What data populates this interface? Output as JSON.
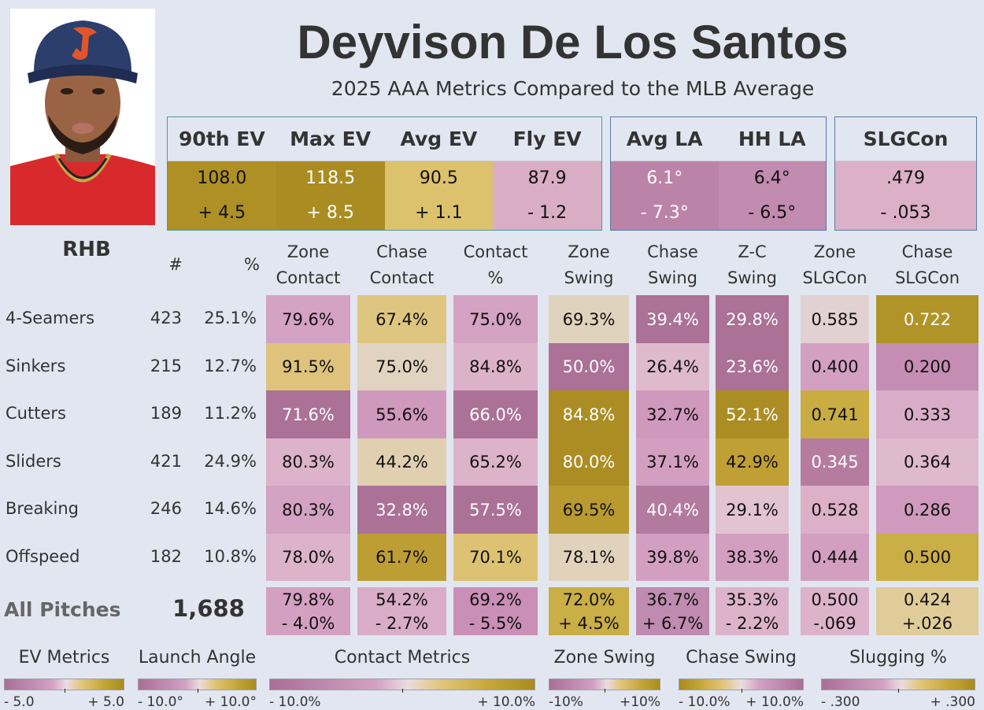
{
  "header": {
    "player_name": "Deyvison De Los Santos",
    "subtitle": "2025 AAA Metrics Compared to the MLB Average"
  },
  "summary": {
    "ev": [
      {
        "label": "90th EV",
        "value": "108.0",
        "diff": "+ 4.5",
        "bg": "#ae9024",
        "fg": "#111111"
      },
      {
        "label": "Max EV",
        "value": "118.5",
        "diff": "+ 8.5",
        "bg": "#ab8c22",
        "fg": "#ffffff"
      },
      {
        "label": "Avg EV",
        "value": "90.5",
        "diff": "+ 1.1",
        "bg": "#dcc26c",
        "fg": "#111111"
      },
      {
        "label": "Fly EV",
        "value": "87.9",
        "diff": "- 1.2",
        "bg": "#d9adc6",
        "fg": "#111111"
      }
    ],
    "la": [
      {
        "label": "Avg LA",
        "value": "6.1°",
        "diff": "- 7.3°",
        "bg": "#bc83a8",
        "fg": "#ffffff"
      },
      {
        "label": "HH LA",
        "value": "6.4°",
        "diff": "- 6.5°",
        "bg": "#c28bb0",
        "fg": "#111111"
      }
    ],
    "slg": [
      {
        "label": "SLGCon",
        "value": ".479",
        "diff": "- .053",
        "bg": "#dbb0c8",
        "fg": "#111111"
      }
    ]
  },
  "table": {
    "handedness": "RHB",
    "count_header": "#",
    "pct_header": "%",
    "columns": [
      {
        "line1": "Zone",
        "line2": "Contact"
      },
      {
        "line1": "Chase",
        "line2": "Contact"
      },
      {
        "line1": "Contact",
        "line2": "%"
      },
      {
        "line1": "Zone",
        "line2": "Swing"
      },
      {
        "line1": "Chase",
        "line2": "Swing"
      },
      {
        "line1": "Z-C",
        "line2": "Swing"
      },
      {
        "line1": "Zone",
        "line2": "SLGCon"
      },
      {
        "line1": "Chase",
        "line2": "SLGCon"
      }
    ],
    "rows": [
      {
        "pitch": "4-Seamers",
        "count": "423",
        "pct": "25.1%",
        "cells": [
          {
            "v": "79.6%",
            "bg": "#d4a2c2",
            "fg": "#111"
          },
          {
            "v": "67.4%",
            "bg": "#dfc680",
            "fg": "#111"
          },
          {
            "v": "75.0%",
            "bg": "#d4a2c2",
            "fg": "#111"
          },
          {
            "v": "69.3%",
            "bg": "#e0d3bd",
            "fg": "#111"
          },
          {
            "v": "39.4%",
            "bg": "#ab7197",
            "fg": "#fff"
          },
          {
            "v": "29.8%",
            "bg": "#ab7197",
            "fg": "#fff"
          },
          {
            "v": "0.585",
            "bg": "#e2d1d2",
            "fg": "#111"
          },
          {
            "v": "0.722",
            "bg": "#b09428",
            "fg": "#fff"
          }
        ]
      },
      {
        "pitch": "Sinkers",
        "count": "215",
        "pct": "12.7%",
        "cells": [
          {
            "v": "91.5%",
            "bg": "#dfc37c",
            "fg": "#111"
          },
          {
            "v": "75.0%",
            "bg": "#e0d3c0",
            "fg": "#111"
          },
          {
            "v": "84.8%",
            "bg": "#dcb2ca",
            "fg": "#111"
          },
          {
            "v": "50.0%",
            "bg": "#ab7197",
            "fg": "#fff"
          },
          {
            "v": "26.4%",
            "bg": "#dfbacc",
            "fg": "#111"
          },
          {
            "v": "23.6%",
            "bg": "#ab7197",
            "fg": "#fff"
          },
          {
            "v": "0.400",
            "bg": "#d4a0c2",
            "fg": "#111"
          },
          {
            "v": "0.200",
            "bg": "#c58db3",
            "fg": "#111"
          }
        ]
      },
      {
        "pitch": "Cutters",
        "count": "189",
        "pct": "11.2%",
        "cells": [
          {
            "v": "71.6%",
            "bg": "#ab7197",
            "fg": "#fff"
          },
          {
            "v": "55.6%",
            "bg": "#cf99bd",
            "fg": "#111"
          },
          {
            "v": "66.0%",
            "bg": "#ab7197",
            "fg": "#fff"
          },
          {
            "v": "84.8%",
            "bg": "#ab8d24",
            "fg": "#fff"
          },
          {
            "v": "32.7%",
            "bg": "#cf98bd",
            "fg": "#111"
          },
          {
            "v": "52.1%",
            "bg": "#ab8d24",
            "fg": "#fff"
          },
          {
            "v": "0.741",
            "bg": "#c9ad42",
            "fg": "#111"
          },
          {
            "v": "0.333",
            "bg": "#d9adc7",
            "fg": "#111"
          }
        ]
      },
      {
        "pitch": "Sliders",
        "count": "421",
        "pct": "24.9%",
        "cells": [
          {
            "v": "80.3%",
            "bg": "#dcb3ca",
            "fg": "#111"
          },
          {
            "v": "44.2%",
            "bg": "#e1d0b0",
            "fg": "#111"
          },
          {
            "v": "65.2%",
            "bg": "#dcb3ca",
            "fg": "#111"
          },
          {
            "v": "80.0%",
            "bg": "#ab8d24",
            "fg": "#fff"
          },
          {
            "v": "37.1%",
            "bg": "#d39fc1",
            "fg": "#111"
          },
          {
            "v": "42.9%",
            "bg": "#c0a035",
            "fg": "#111"
          },
          {
            "v": "0.345",
            "bg": "#b57c9f",
            "fg": "#fff"
          },
          {
            "v": "0.364",
            "bg": "#dfbacc",
            "fg": "#111"
          }
        ]
      },
      {
        "pitch": "Breaking",
        "count": "246",
        "pct": "14.6%",
        "cells": [
          {
            "v": "80.3%",
            "bg": "#d4a2c2",
            "fg": "#111"
          },
          {
            "v": "32.8%",
            "bg": "#ab7197",
            "fg": "#fff"
          },
          {
            "v": "57.5%",
            "bg": "#ab7197",
            "fg": "#fff"
          },
          {
            "v": "69.5%",
            "bg": "#b89a2f",
            "fg": "#111"
          },
          {
            "v": "40.4%",
            "bg": "#b27a9e",
            "fg": "#fff"
          },
          {
            "v": "29.1%",
            "bg": "#e1c4cf",
            "fg": "#111"
          },
          {
            "v": "0.528",
            "bg": "#dcb0c8",
            "fg": "#111"
          },
          {
            "v": "0.286",
            "bg": "#d09abe",
            "fg": "#111"
          }
        ]
      },
      {
        "pitch": "Offspeed",
        "count": "182",
        "pct": "10.8%",
        "cells": [
          {
            "v": "78.0%",
            "bg": "#dcb3ca",
            "fg": "#111"
          },
          {
            "v": "61.7%",
            "bg": "#bd9e35",
            "fg": "#111"
          },
          {
            "v": "70.1%",
            "bg": "#dcc272",
            "fg": "#111"
          },
          {
            "v": "78.1%",
            "bg": "#e1d3bb",
            "fg": "#111"
          },
          {
            "v": "39.8%",
            "bg": "#d39fc1",
            "fg": "#111"
          },
          {
            "v": "38.3%",
            "bg": "#d39fc1",
            "fg": "#111"
          },
          {
            "v": "0.444",
            "bg": "#d39fc1",
            "fg": "#111"
          },
          {
            "v": "0.500",
            "bg": "#caae46",
            "fg": "#111"
          }
        ]
      }
    ],
    "total": {
      "label": "All Pitches",
      "count": "1,688",
      "cells": [
        {
          "v": "79.8%",
          "d": "- 4.0%",
          "bg": "#d4a0c2",
          "fg": "#111"
        },
        {
          "v": "54.2%",
          "d": "- 2.7%",
          "bg": "#d9adc7",
          "fg": "#111"
        },
        {
          "v": "69.2%",
          "d": "- 5.5%",
          "bg": "#c98fb6",
          "fg": "#111"
        },
        {
          "v": "72.0%",
          "d": "+ 4.5%",
          "bg": "#caae46",
          "fg": "#111"
        },
        {
          "v": "36.7%",
          "d": "+ 6.7%",
          "bg": "#c08bb0",
          "fg": "#111"
        },
        {
          "v": "35.3%",
          "d": "- 2.2%",
          "bg": "#dcb3ca",
          "fg": "#111"
        },
        {
          "v": "0.500",
          "d": "-.069",
          "bg": "#dcb3ca",
          "fg": "#111"
        },
        {
          "v": "0.424",
          "d": "+.026",
          "bg": "#e0cc98",
          "fg": "#111"
        }
      ]
    }
  },
  "legends": [
    {
      "title": "EV Metrics",
      "low": "- 5.0",
      "high": "+ 5.0",
      "direction": "pink-to-gold"
    },
    {
      "title": "Launch Angle",
      "low": "- 10.0°",
      "high": "+ 10.0°",
      "direction": "pink-to-gold"
    },
    {
      "title": "Contact Metrics",
      "low": "- 10.0%",
      "high": "+ 10.0%",
      "direction": "pink-to-gold"
    },
    {
      "title": "Zone Swing",
      "low": "-10%",
      "high": "+10%",
      "direction": "pink-to-gold"
    },
    {
      "title": "Chase Swing",
      "low": "- 10.0%",
      "high": "+ 10.0%",
      "direction": "gold-to-pink"
    },
    {
      "title": "Slugging %",
      "low": "- .300",
      "high": "+ .300",
      "direction": "pink-to-gold"
    }
  ]
}
